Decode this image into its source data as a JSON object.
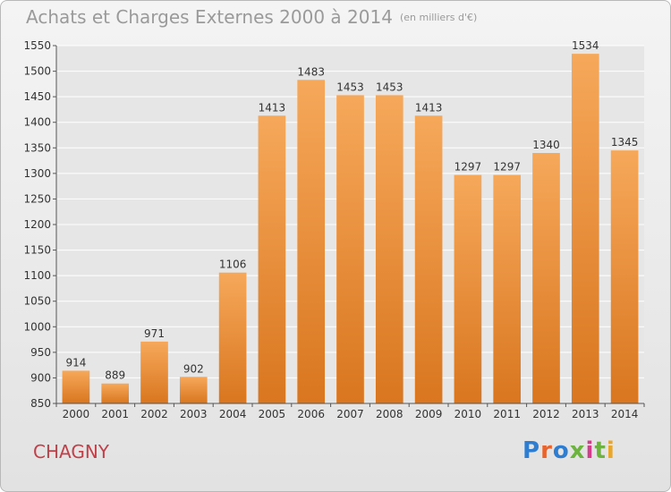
{
  "header": {
    "title": "Achats et Charges Externes 2000 à 2014",
    "unit": "(en milliers d'€)"
  },
  "footer": {
    "city": "CHAGNY",
    "logo_text": "Proxiti"
  },
  "colors": {
    "bar_light": "#f6a85a",
    "bar_dark": "#d9761f",
    "grid": "#ffffff",
    "axis_text": "#333333",
    "title": "#9a9a9a",
    "city": "#c0404a",
    "logo_letters": [
      "#2e7dd1",
      "#e8642c",
      "#2e7dd1",
      "#6cb33f",
      "#d63c8c",
      "#6cb33f",
      "#e8a62c"
    ]
  },
  "chart_data": {
    "type": "bar",
    "categories": [
      "2000",
      "2001",
      "2002",
      "2003",
      "2004",
      "2005",
      "2006",
      "2007",
      "2008",
      "2009",
      "2010",
      "2011",
      "2012",
      "2013",
      "2014"
    ],
    "values": [
      914,
      889,
      971,
      902,
      1106,
      1413,
      1483,
      1453,
      1453,
      1413,
      1297,
      1297,
      1340,
      1534,
      1345
    ],
    "ylim": [
      850,
      1550
    ],
    "yticks": [
      850,
      900,
      950,
      1000,
      1050,
      1100,
      1150,
      1200,
      1250,
      1300,
      1350,
      1400,
      1450,
      1500,
      1550
    ],
    "grid": true
  }
}
